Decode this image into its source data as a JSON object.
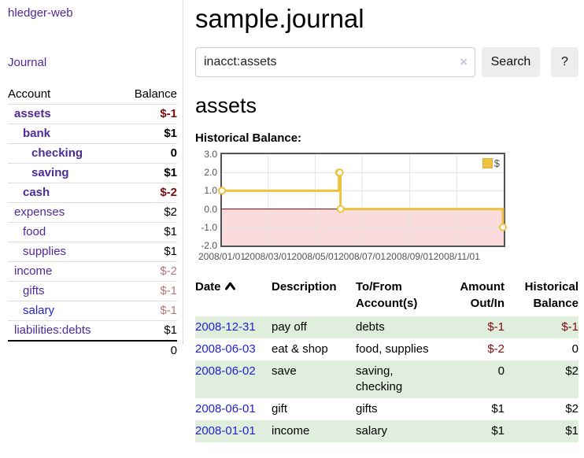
{
  "app_title": "hledger-web",
  "sidebar": {
    "journal_link": "Journal",
    "accounts": {
      "col_account": "Account",
      "col_balance": "Balance",
      "rows": [
        {
          "name": "assets",
          "indent": 1,
          "bold": true,
          "link_color": "purple",
          "balance": "$-1",
          "balance_class": "neg-bold"
        },
        {
          "name": "bank",
          "indent": 2,
          "bold": true,
          "link_color": "purple",
          "balance": "$1",
          "balance_class": "pos-bold"
        },
        {
          "name": "checking",
          "indent": 3,
          "bold": true,
          "link_color": "purple",
          "balance": "0",
          "balance_class": "pos-bold"
        },
        {
          "name": "saving",
          "indent": 3,
          "bold": true,
          "link_color": "purple",
          "balance": "$1",
          "balance_class": "pos-bold"
        },
        {
          "name": "cash",
          "indent": 2,
          "bold": true,
          "link_color": "purple",
          "balance": "$-2",
          "balance_class": "neg-bold"
        },
        {
          "name": "expenses",
          "indent": 1,
          "bold": false,
          "link_color": "purple",
          "balance": "$2",
          "balance_class": ""
        },
        {
          "name": "food",
          "indent": 2,
          "bold": false,
          "link_color": "purple",
          "balance": "$1",
          "balance_class": ""
        },
        {
          "name": "supplies",
          "indent": 2,
          "bold": false,
          "link_color": "purple",
          "balance": "$1",
          "balance_class": ""
        },
        {
          "name": "income",
          "indent": 1,
          "bold": false,
          "link_color": "purple",
          "balance": "$-2",
          "balance_class": "neg-faded"
        },
        {
          "name": "gifts",
          "indent": 2,
          "bold": false,
          "link_color": "purple",
          "balance": "$-1",
          "balance_class": "neg-faded"
        },
        {
          "name": "salary",
          "indent": 2,
          "bold": false,
          "link_color": "blue",
          "balance": "$-1",
          "balance_class": "neg-faded"
        },
        {
          "name": "liabilities:debts",
          "indent": 1,
          "bold": false,
          "link_color": "purple",
          "balance": "$1",
          "balance_class": ""
        }
      ],
      "total": "0"
    }
  },
  "main": {
    "title": "sample.journal",
    "search": {
      "value": "inacct:assets",
      "clear_icon": "×",
      "search_button": "Search",
      "help_button": "?"
    },
    "account_heading": "assets",
    "chart_label": "Historical Balance:"
  },
  "chart_data": {
    "type": "line",
    "step": true,
    "title": "Historical Balance",
    "series": [
      {
        "name": "$",
        "color": "#edc240",
        "points": [
          [
            "2008-01-01",
            1
          ],
          [
            "2008-06-01",
            2
          ],
          [
            "2008-06-02",
            2
          ],
          [
            "2008-06-03",
            0
          ],
          [
            "2008-12-31",
            -1
          ]
        ]
      }
    ],
    "xrange": [
      "2008-01-01",
      "2009-01-01"
    ],
    "ylim": [
      -2,
      3
    ],
    "yticks": [
      3,
      2,
      1,
      0,
      -1,
      -2
    ],
    "ytick_labels": [
      "3.0",
      "2.0",
      "1.0",
      "0.0",
      "-1.0",
      "-2.0"
    ],
    "xticks": [
      "2008-01-01",
      "2008-03-01",
      "2008-05-01",
      "2008-07-01",
      "2008-09-01",
      "2008-11-01"
    ],
    "xtick_labels": [
      "2008/01/01",
      "2008/03/01",
      "2008/05/01",
      "2008/07/01",
      "2008/09/01",
      "2008/11/01"
    ],
    "legend_position": "top-right",
    "grid": true,
    "grid_color": "#e3e3e3",
    "border_color": "#545454",
    "negative_region_color": "#fbdcdc",
    "zero_line_color": "#8b0000",
    "marker_fill": "#ffffff"
  },
  "transactions": {
    "headers": {
      "date": "Date",
      "description": "Description",
      "accounts": "To/From Account(s)",
      "amount": "Amount Out/In",
      "balance": "Historical Balance"
    },
    "rows": [
      {
        "date": "2008-12-31",
        "description": "pay off",
        "accounts": "debts",
        "amount": "$-1",
        "amount_class": "neg",
        "balance": "$-1",
        "balance_class": "neg",
        "shaded": true
      },
      {
        "date": "2008-06-03",
        "description": "eat & shop",
        "accounts": "food, supplies",
        "amount": "$-2",
        "amount_class": "neg",
        "balance": "0",
        "balance_class": "",
        "shaded": false
      },
      {
        "date": "2008-06-02",
        "description": "save",
        "accounts": "saving, checking",
        "amount": "0",
        "amount_class": "",
        "balance": "$2",
        "balance_class": "",
        "shaded": true
      },
      {
        "date": "2008-06-01",
        "description": "gift",
        "accounts": "gifts",
        "amount": "$1",
        "amount_class": "",
        "balance": "$2",
        "balance_class": "",
        "shaded": false
      },
      {
        "date": "2008-01-01",
        "description": "income",
        "accounts": "salary",
        "amount": "$1",
        "amount_class": "",
        "balance": "$1",
        "balance_class": "",
        "shaded": true
      }
    ]
  }
}
